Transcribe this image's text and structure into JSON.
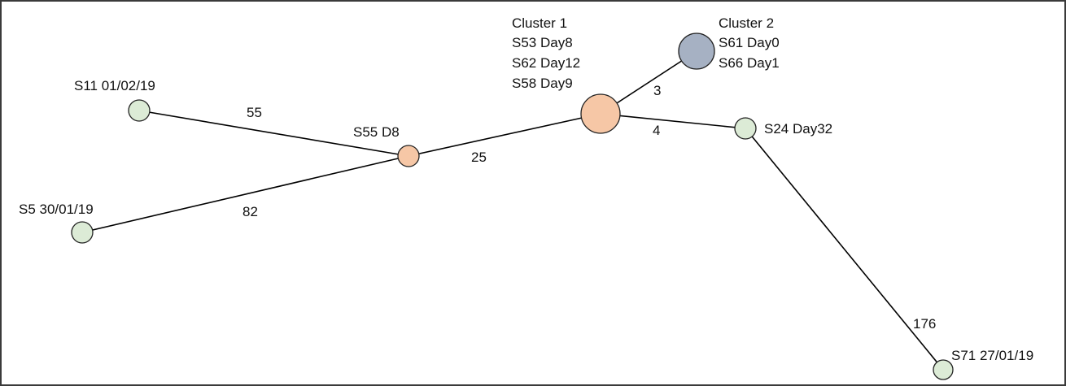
{
  "colors": {
    "frame": "#3a3a3a",
    "edge": "#000000",
    "sample_fill": "#dcebd6",
    "cluster1_fill": "#f6c7a6",
    "cluster2_fill": "#a6b1c3",
    "text": "#111111"
  },
  "nodes": {
    "s11": {
      "label": "S11 01/02/19",
      "kind": "sample"
    },
    "s5": {
      "label": "S5 30/01/19",
      "kind": "sample"
    },
    "s55": {
      "label": "S55 D8",
      "kind": "cluster1"
    },
    "cluster1": {
      "kind": "cluster1",
      "lines": [
        "Cluster 1",
        "S53 Day8",
        "S62 Day12",
        "S58 Day9"
      ]
    },
    "cluster2": {
      "kind": "cluster2",
      "lines": [
        "Cluster 2",
        "S61 Day0",
        "S66 Day1"
      ]
    },
    "s24": {
      "label": "S24 Day32",
      "kind": "sample"
    },
    "s71": {
      "label": "S71 27/01/19",
      "kind": "sample"
    }
  },
  "edges": [
    {
      "from": "s11",
      "to": "s55",
      "distance": "55"
    },
    {
      "from": "s5",
      "to": "s55",
      "distance": "82"
    },
    {
      "from": "s55",
      "to": "cluster1",
      "distance": "25"
    },
    {
      "from": "cluster1",
      "to": "cluster2",
      "distance": "3"
    },
    {
      "from": "cluster1",
      "to": "s24",
      "distance": "4"
    },
    {
      "from": "s24",
      "to": "s71",
      "distance": "176"
    }
  ]
}
